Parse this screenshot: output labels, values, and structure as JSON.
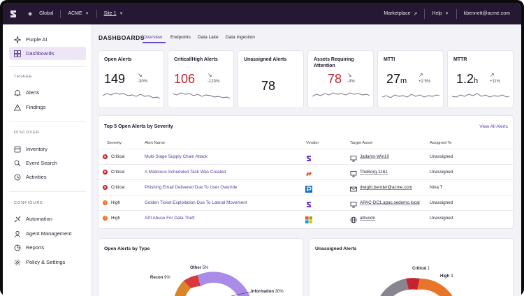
{
  "topbar": {
    "scope": "Global",
    "account": "ACME",
    "site": "Site 1",
    "marketplace": "Marketplace",
    "help": "Help",
    "user": "kbennett@acme.com"
  },
  "sidebar": {
    "purple_ai": "Purple AI",
    "dashboards": "Dashboards",
    "triage_header": "TRIAGE",
    "alerts": "Alerts",
    "findings": "Findings",
    "discover_header": "DISCOVER",
    "inventory": "Inventory",
    "event_search": "Event Search",
    "activities": "Activities",
    "configure_header": "CONFIGURE",
    "automation": "Automation",
    "agent_management": "Agent Management",
    "reports": "Reports",
    "policy_settings": "Policy & Settings"
  },
  "header": {
    "title": "DASHBOARDS",
    "tabs": [
      "Overview",
      "Endpoints",
      "Data Lake",
      "Data Ingestion"
    ]
  },
  "kpis": [
    {
      "title": "Open Alerts",
      "value": "149",
      "unit": "",
      "delta": "-30%",
      "arrow": "↘",
      "color": "#16121c"
    },
    {
      "title": "Critical/High Alerts",
      "value": "106",
      "unit": "",
      "delta": "-123%",
      "arrow": "↘",
      "color": "#c4242f"
    },
    {
      "title": "Unassigned Alerts",
      "value": "78",
      "unit": "",
      "delta": "",
      "arrow": "",
      "color": "#16121c"
    },
    {
      "title": "Assets Requiring Attention",
      "value": "78",
      "unit": "",
      "delta": "-3%",
      "arrow": "↘",
      "color": "#c4242f"
    },
    {
      "title": "MTTI",
      "value": "27",
      "unit": "m",
      "delta": "+2.5%",
      "arrow": "↗",
      "color": "#16121c"
    },
    {
      "title": "MTTR",
      "value": "1.2",
      "unit": "h",
      "delta": "+11%",
      "arrow": "↗",
      "color": "#16121c"
    }
  ],
  "alerts_table": {
    "title": "Top 5 Open Alerts by Severity",
    "view_all": "View All Alerts",
    "columns": [
      "Severity",
      "Alert Name",
      "Vendor",
      "Target Asset",
      "Assigned To"
    ],
    "rows": [
      {
        "severity": "Critical",
        "sev_color": "#c4242f",
        "name": "Multi-Stage Supply Chain Attack",
        "vendor_icon": "sentinelone-icon",
        "asset_icon": "monitor-icon",
        "asset": "Jadams-Win10",
        "assigned": "Unassigned"
      },
      {
        "severity": "Critical",
        "sev_color": "#c4242f",
        "name": "A Malicious Scheduled Task Was Created",
        "vendor_icon": "vendor-red-icon",
        "asset_icon": "monitor-icon",
        "asset": "TheBorg-1161",
        "assigned": "Unassigned"
      },
      {
        "severity": "Critical",
        "sev_color": "#c4242f",
        "name": "Phishing Email Delivered Due To User Override",
        "vendor_icon": "proofpoint-icon",
        "asset_icon": "mail-icon",
        "asset": "dwight.bender@acme.com",
        "assigned": "Nina T"
      },
      {
        "severity": "High",
        "sev_color": "#e8742a",
        "name": "Golden Ticket Exploitation Due To Lateral Movement",
        "vendor_icon": "sentinelone-icon",
        "asset_icon": "monitor-icon",
        "asset": "APAC-DC1.apac.sedemo.local",
        "assigned": "Unassigned"
      },
      {
        "severity": "High",
        "sev_color": "#e8742a",
        "name": "API Abuse For Data Theft",
        "vendor_icon": "microsoft-icon",
        "asset_icon": "globe-icon",
        "asset": "attivodn",
        "assigned": "Unassigned"
      }
    ]
  },
  "open_by_type": {
    "title": "Open Alerts by Type",
    "slices": [
      {
        "label": "Recon",
        "pct": "9%",
        "color": "#d7842a"
      },
      {
        "label": "Other",
        "pct": "5%",
        "color": "#d73a3a"
      },
      {
        "label": "Information",
        "pct": "30%",
        "color": "#a98be8"
      }
    ]
  },
  "unassigned": {
    "title": "Unassigned Alerts",
    "slices": [
      {
        "label": "Critical",
        "pct": "1",
        "color": "#c4242f"
      },
      {
        "label": "High",
        "pct": "3",
        "color": "#e8742a"
      }
    ]
  }
}
